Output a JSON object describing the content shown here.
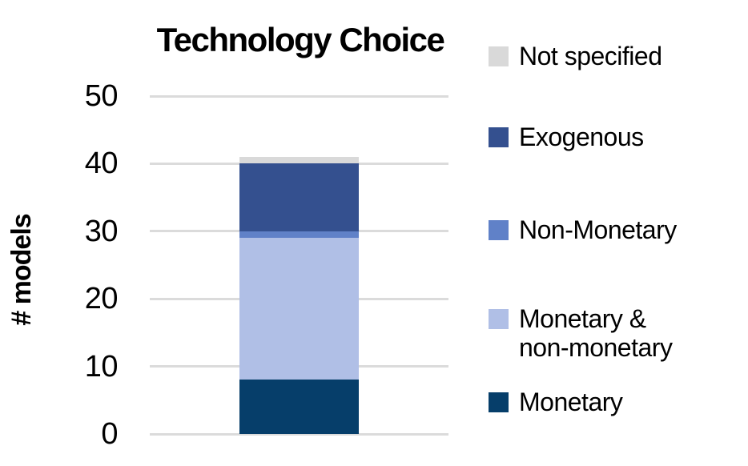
{
  "title": "Technology Choice",
  "chart_data": {
    "type": "bar",
    "stacked": true,
    "title": "Technology Choice",
    "xlabel": "",
    "ylabel": "# models",
    "ylim": [
      0,
      50
    ],
    "yticks": [
      0,
      10,
      20,
      30,
      40,
      50
    ],
    "grid": true,
    "gridline_color": "#dbdbdb",
    "categories": [
      ""
    ],
    "series": [
      {
        "name": "Monetary",
        "color": "#063e6a",
        "values": [
          8
        ]
      },
      {
        "name": "Monetary & non-monetary",
        "color": "#b0bfe6",
        "values": [
          21
        ]
      },
      {
        "name": "Non-Monetary",
        "color": "#6081c8",
        "values": [
          1
        ]
      },
      {
        "name": "Exogenous",
        "color": "#34508f",
        "values": [
          10
        ]
      },
      {
        "name": "Not specified",
        "color": "#d9d9d9",
        "values": [
          1
        ]
      }
    ],
    "legend_position": "right"
  },
  "legend": {
    "items": [
      {
        "label": "Not specified",
        "color": "#d9d9d9"
      },
      {
        "label": "Exogenous",
        "color": "#34508f"
      },
      {
        "label": "Non-Monetary",
        "color": "#6081c8"
      },
      {
        "label": "Monetary &\nnon-monetary",
        "color": "#b0bfe6"
      },
      {
        "label": "Monetary",
        "color": "#063e6a"
      }
    ]
  }
}
